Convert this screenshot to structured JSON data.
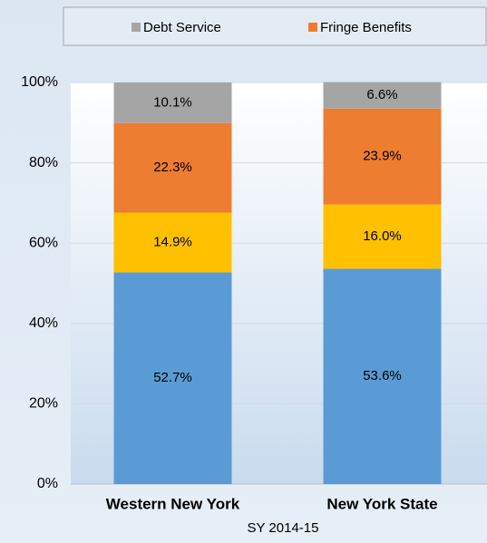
{
  "chart_data": {
    "type": "stacked_bar",
    "xlabel": "SY 2014-15",
    "categories": [
      "Western New York",
      "New York State"
    ],
    "series": [
      {
        "color": "#5b9bd5",
        "values": [
          52.7,
          53.6
        ],
        "value_labels": [
          "52.7%",
          "53.6%"
        ]
      },
      {
        "color": "#ffc000",
        "values": [
          14.9,
          16.0
        ],
        "value_labels": [
          "14.9%",
          "16.0%"
        ]
      },
      {
        "name": "Fringe Benefits",
        "color": "#ed7d31",
        "values": [
          22.3,
          23.9
        ],
        "value_labels": [
          "22.3%",
          "23.9%"
        ]
      },
      {
        "name": "Debt Service",
        "color": "#a5a5a5",
        "values": [
          10.1,
          6.6
        ],
        "value_labels": [
          "10.1%",
          "6.6%"
        ]
      }
    ],
    "ylim": [
      0,
      100
    ],
    "yticks": [
      {
        "value": 0,
        "label": "0%"
      },
      {
        "value": 20,
        "label": "20%"
      },
      {
        "value": 40,
        "label": "40%"
      },
      {
        "value": 60,
        "label": "60%"
      },
      {
        "value": 80,
        "label": "80%"
      },
      {
        "value": 100,
        "label": "100%"
      }
    ],
    "grid": true,
    "legend": "top"
  }
}
